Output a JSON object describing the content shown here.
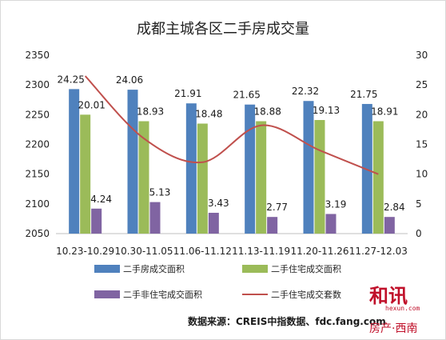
{
  "chart_data": {
    "type": "bar",
    "title": "成都主城各区二手房成交量",
    "categories": [
      "10.23-10.29",
      "10.30-11.05",
      "11.06-11.12",
      "11.13-11.19",
      "11.20-11.26",
      "11.27-12.03"
    ],
    "series": [
      {
        "name": "二手房成交面积",
        "type": "bar",
        "axis": "left",
        "color": "#4f81bd",
        "values": [
          2293,
          2292,
          2269,
          2267,
          2273,
          2268
        ],
        "labels": [
          "24.25",
          "24.06",
          "21.91",
          "21.65",
          "22.32",
          "21.75"
        ]
      },
      {
        "name": "二手住宅成交面积",
        "type": "bar",
        "axis": "left",
        "color": "#9bbb59",
        "values": [
          2250,
          2239,
          2235,
          2239,
          2241,
          2239
        ],
        "labels": [
          "20.01",
          "18.93",
          "18.48",
          "18.88",
          "19.13",
          "18.91"
        ]
      },
      {
        "name": "二手非住宅成交面积",
        "type": "bar",
        "axis": "left",
        "color": "#8064a2",
        "values": [
          2092,
          2103,
          2085,
          2078,
          2083,
          2078
        ],
        "labels": [
          "4.24",
          "5.13",
          "3.43",
          "2.77",
          "3.19",
          "2.84"
        ]
      },
      {
        "name": "二手住宅成交套数",
        "type": "line",
        "axis": "right",
        "color": "#c0504d",
        "values": [
          26.5,
          16,
          12,
          18.2,
          14,
          10
        ]
      }
    ],
    "y_left": {
      "min": 2050,
      "max": 2350,
      "ticks": [
        2050,
        2100,
        2150,
        2200,
        2250,
        2300,
        2350
      ]
    },
    "y_right": {
      "min": 0,
      "max": 30,
      "ticks": [
        0,
        5,
        10,
        15,
        20,
        25,
        30
      ]
    },
    "grid": false,
    "legend_position": "bottom"
  },
  "source": "数据来源：CREIS中指数据、fdc.fang.com",
  "watermark": {
    "logo": "和讯",
    "domain": "hexun.com",
    "subtitle": "房产·西南"
  }
}
